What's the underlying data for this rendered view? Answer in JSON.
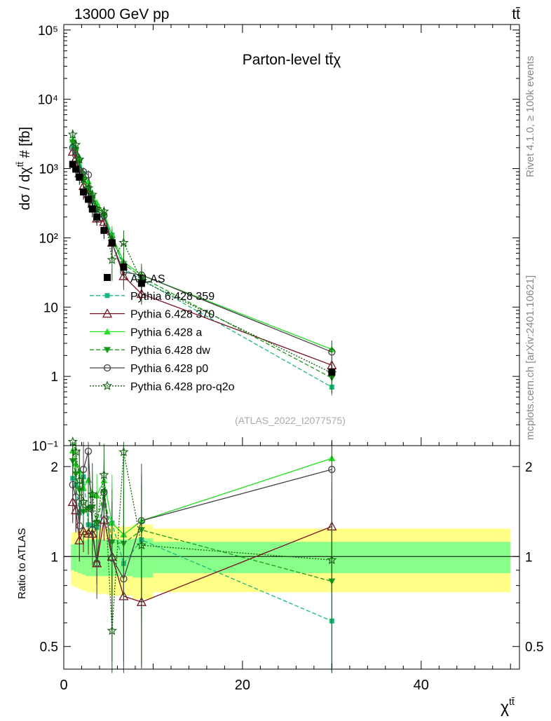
{
  "colors": {
    "atlas": "#000000",
    "p359": "#1ab87d",
    "p370": "#7a1020",
    "pa": "#22dd22",
    "pdw": "#1a9a1a",
    "pp0": "#444444",
    "pq2o": "#106010",
    "band_outer": "#ffff88",
    "band_inner": "#88ff88",
    "rivet_gray": "#888888"
  },
  "header": {
    "left": "13000 GeV pp",
    "right": "tt̄"
  },
  "side": {
    "top": "Rivet 4.1.0, ≥ 100k events",
    "bottom": "mcplots.cern.ch [arXiv:2401.10621]"
  },
  "chart_data": {
    "type": "line",
    "title": "Parton-level tt̄χ",
    "watermark": "(ATLAS_2022_I2077575)",
    "ylabel": "dσ / dχ^tt̄ # [fb]",
    "ylabel_parts": {
      "a": "dσ / dχ",
      "sup": "tt̄",
      "b": " # [fb]"
    },
    "xlabel": "χ^tt̄",
    "xlabel_parts": {
      "a": "χ",
      "sup": "tt̄"
    },
    "ratio_ylabel": "Ratio to ATLAS",
    "xlim": [
      0,
      51
    ],
    "ylim": [
      0.1,
      120000
    ],
    "ratio_ylim": [
      0.42,
      2.35
    ],
    "yscale": "log",
    "x_ticks": [
      "0",
      "20",
      "40"
    ],
    "y_ticks": [
      "10⁻¹",
      "1",
      "10",
      "10²",
      "10³",
      "10⁴",
      "10⁵"
    ],
    "ratio_ticks": [
      "0.5",
      "1",
      "2"
    ],
    "ratio_tick_values": [
      0.5,
      1,
      2
    ],
    "legend_position": "lower-left",
    "x": [
      1.0,
      1.35,
      1.75,
      2.2,
      2.75,
      3.2,
      3.7,
      4.5,
      5.4,
      6.7,
      8.7,
      30.0
    ],
    "atlas": {
      "name": "ATLAS",
      "values": [
        1150,
        980,
        750,
        460,
        360,
        260,
        200,
        128,
        85,
        38,
        22,
        1.15
      ],
      "band_inner": [
        0.1,
        0.11,
        0.12,
        0.13,
        0.14,
        0.14,
        0.14,
        0.14,
        0.14,
        0.14,
        0.15,
        0.12
      ],
      "band_outer": [
        0.2,
        0.21,
        0.22,
        0.23,
        0.24,
        0.24,
        0.25,
        0.25,
        0.26,
        0.26,
        0.28,
        0.24
      ]
    },
    "series": [
      {
        "name": "Pythia 6.428 359",
        "key": "p359",
        "marker": "square",
        "dash": "6,3",
        "values": [
          2100,
          1700,
          1050,
          850,
          460,
          330,
          250,
          190,
          110,
          36,
          25,
          0.7
        ]
      },
      {
        "name": "Pythia 6.428 370",
        "key": "p370",
        "marker": "triangle-open",
        "dash": "",
        "values": [
          1750,
          1400,
          850,
          560,
          430,
          310,
          190,
          170,
          85,
          28,
          15.5,
          1.45
        ]
      },
      {
        "name": "Pythia 6.428 a",
        "key": "pa",
        "marker": "triangle",
        "dash": "",
        "values": [
          2600,
          2000,
          1450,
          780,
          650,
          420,
          320,
          230,
          110,
          45,
          29,
          2.45
        ]
      },
      {
        "name": "Pythia 6.428 dw",
        "key": "pdw",
        "marker": "triangle-down",
        "dash": "6,3",
        "values": [
          2400,
          1850,
          1250,
          650,
          520,
          380,
          260,
          210,
          95,
          42,
          27,
          0.95
        ]
      },
      {
        "name": "Pythia 6.428 p0",
        "key": "pp0",
        "marker": "circle-open",
        "dash": "",
        "values": [
          2000,
          1550,
          950,
          900,
          810,
          320,
          190,
          210,
          84,
          32,
          29,
          2.25
        ]
      },
      {
        "name": "Pythia 6.428 pro-q2o",
        "key": "pq2o",
        "marker": "star",
        "dash": "2,2",
        "values": [
          3100,
          2200,
          1350,
          700,
          520,
          420,
          260,
          240,
          48,
          85,
          24,
          1.12
        ]
      }
    ]
  }
}
